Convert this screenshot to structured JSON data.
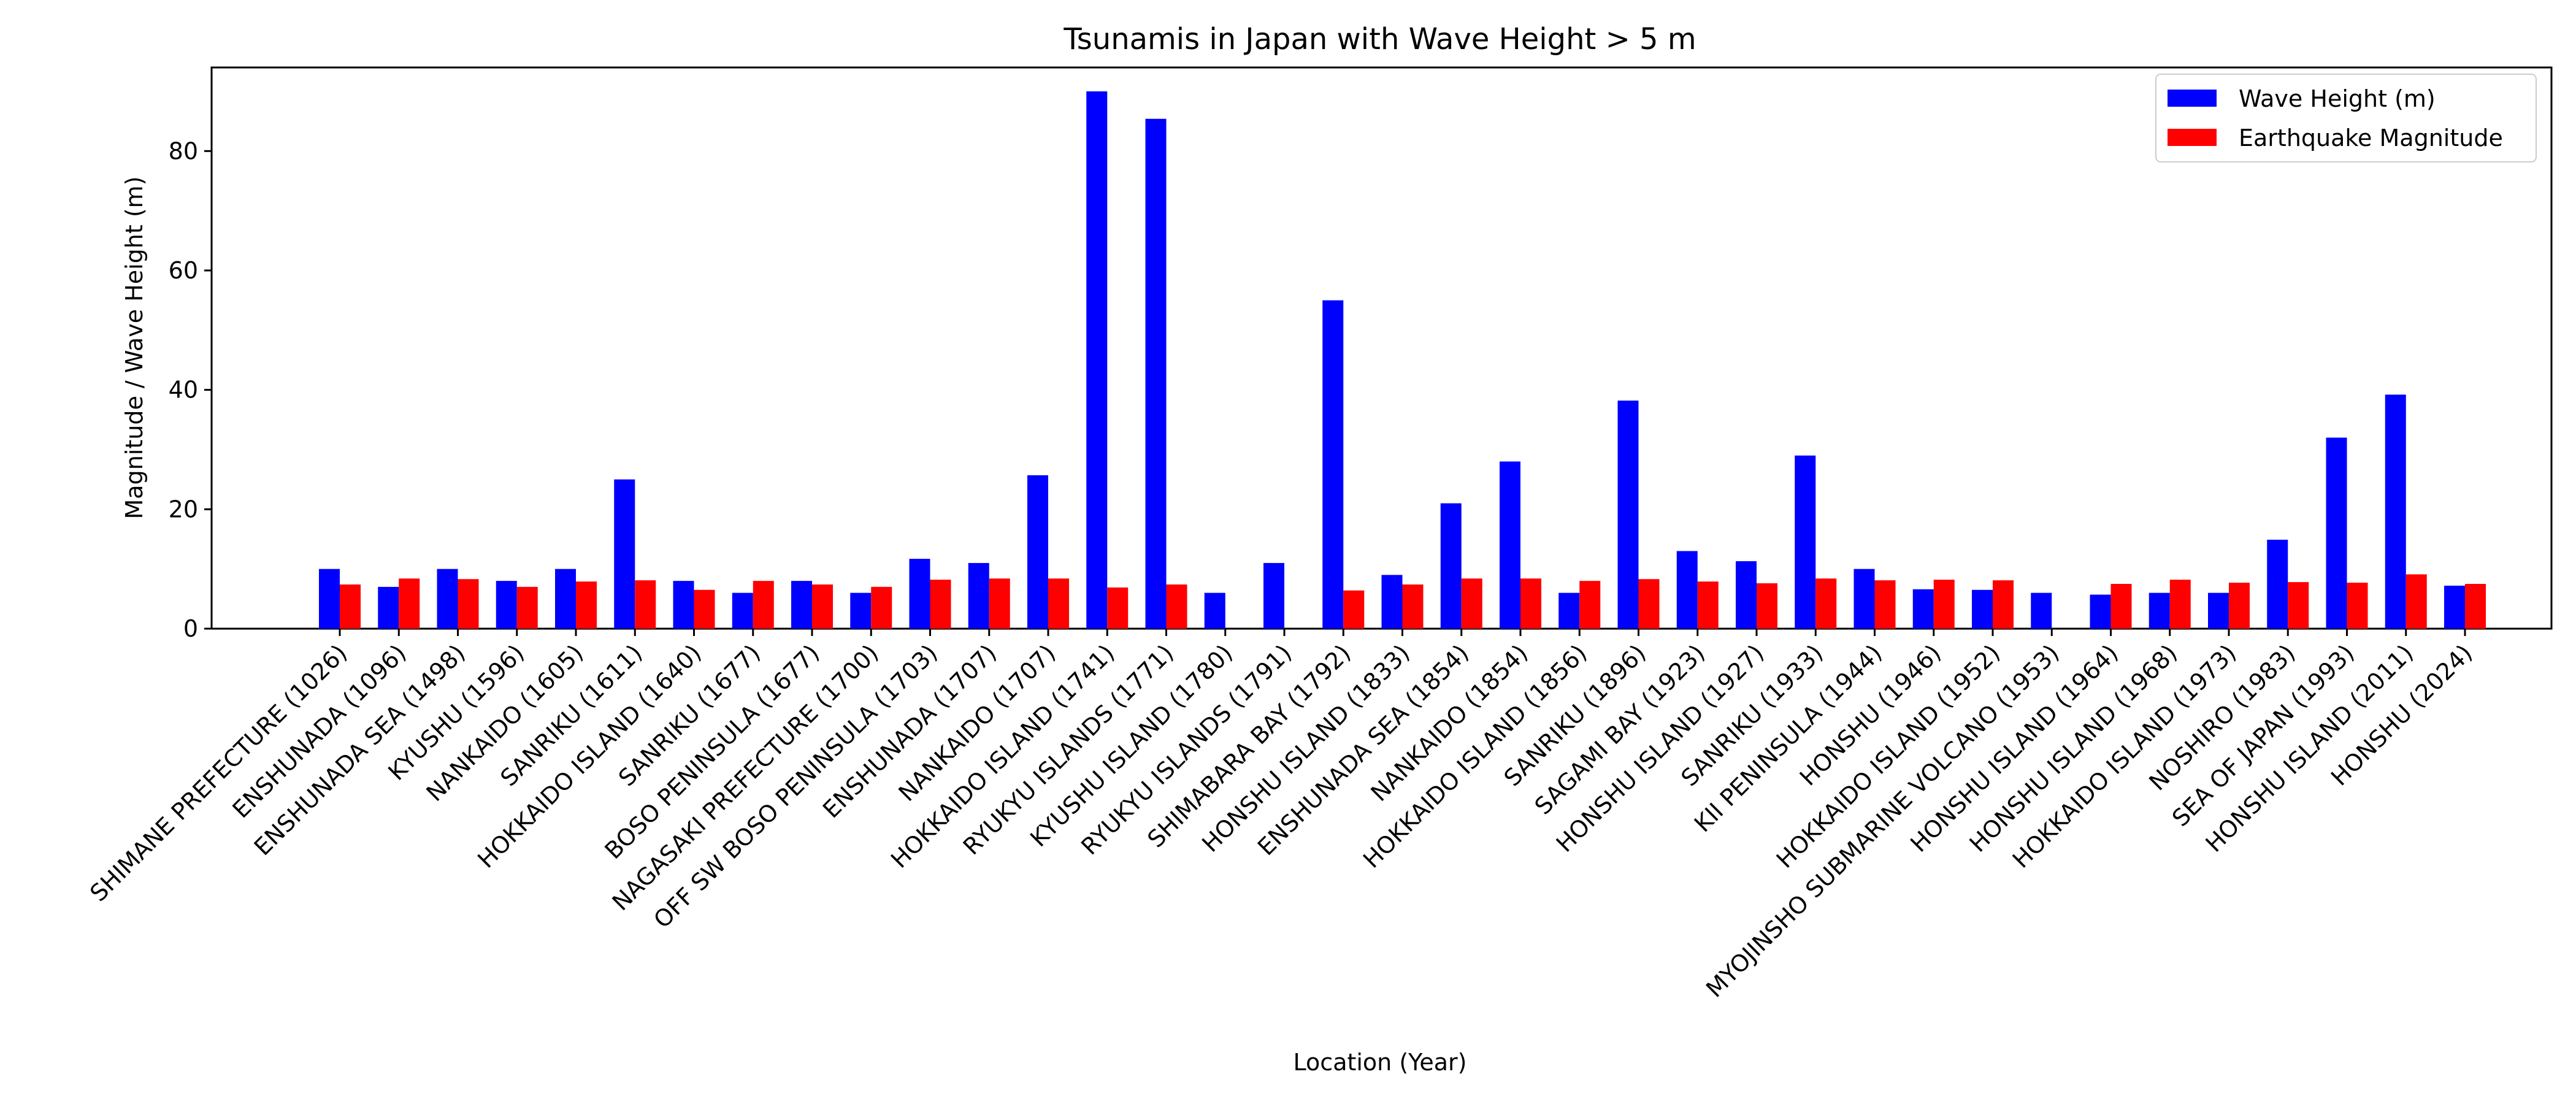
{
  "chart_data": {
    "type": "bar",
    "title": "Tsunamis in Japan with Wave Height > 5 m",
    "xlabel": "Location (Year)",
    "ylabel": "Magnitude / Wave Height (m)",
    "ylim": [
      0,
      94
    ],
    "yticks": [
      0,
      20,
      40,
      60,
      80
    ],
    "grid": false,
    "legend_position": "top-right",
    "categories": [
      "SHIMANE PREFECTURE (1026)",
      "ENSHUNADA (1096)",
      "ENSHUNADA SEA (1498)",
      "KYUSHU (1596)",
      "NANKAIDO (1605)",
      "SANRIKU (1611)",
      "HOKKAIDO ISLAND (1640)",
      "SANRIKU (1677)",
      "BOSO PENINSULA (1677)",
      "NAGASAKI PREFECTURE (1700)",
      "OFF SW BOSO PENINSULA (1703)",
      "ENSHUNADA (1707)",
      "NANKAIDO (1707)",
      "HOKKAIDO ISLAND (1741)",
      "RYUKYU ISLANDS (1771)",
      "KYUSHU ISLAND (1780)",
      "RYUKYU ISLANDS (1791)",
      "SHIMABARA BAY (1792)",
      "HONSHU ISLAND (1833)",
      "ENSHUNADA SEA (1854)",
      "NANKAIDO (1854)",
      "HOKKAIDO ISLAND (1856)",
      "SANRIKU (1896)",
      "SAGAMI BAY (1923)",
      "HONSHU ISLAND (1927)",
      "SANRIKU (1933)",
      "KII PENINSULA (1944)",
      "HONSHU (1946)",
      "HOKKAIDO ISLAND (1952)",
      "MYOJINSHO SUBMARINE VOLCANO (1953)",
      "HONSHU ISLAND (1964)",
      "HONSHU ISLAND (1968)",
      "HOKKAIDO ISLAND (1973)",
      "NOSHIRO (1983)",
      "SEA OF JAPAN (1993)",
      "HONSHU ISLAND (2011)",
      "HONSHU (2024)"
    ],
    "series": [
      {
        "name": "Wave Height (m)",
        "color": "#0000ff",
        "values": [
          10,
          7,
          10,
          8,
          10,
          25,
          8,
          6,
          8,
          6,
          11.7,
          11,
          25.7,
          90,
          85.4,
          6,
          11,
          55,
          9,
          21,
          28,
          6,
          38.2,
          13,
          11.3,
          29,
          10,
          6.6,
          6.5,
          6,
          5.7,
          6,
          6,
          14.9,
          32,
          39.2,
          7.2
        ]
      },
      {
        "name": "Earthquake Magnitude",
        "color": "#ff0000",
        "values": [
          7.4,
          8.4,
          8.3,
          7.0,
          7.9,
          8.1,
          6.5,
          8.0,
          7.4,
          7.0,
          8.2,
          8.4,
          8.4,
          6.9,
          7.4,
          null,
          null,
          6.4,
          7.4,
          8.4,
          8.4,
          8.0,
          8.3,
          7.9,
          7.6,
          8.4,
          8.1,
          8.2,
          8.1,
          null,
          7.5,
          8.2,
          7.7,
          7.8,
          7.7,
          9.1,
          7.5
        ]
      }
    ]
  }
}
